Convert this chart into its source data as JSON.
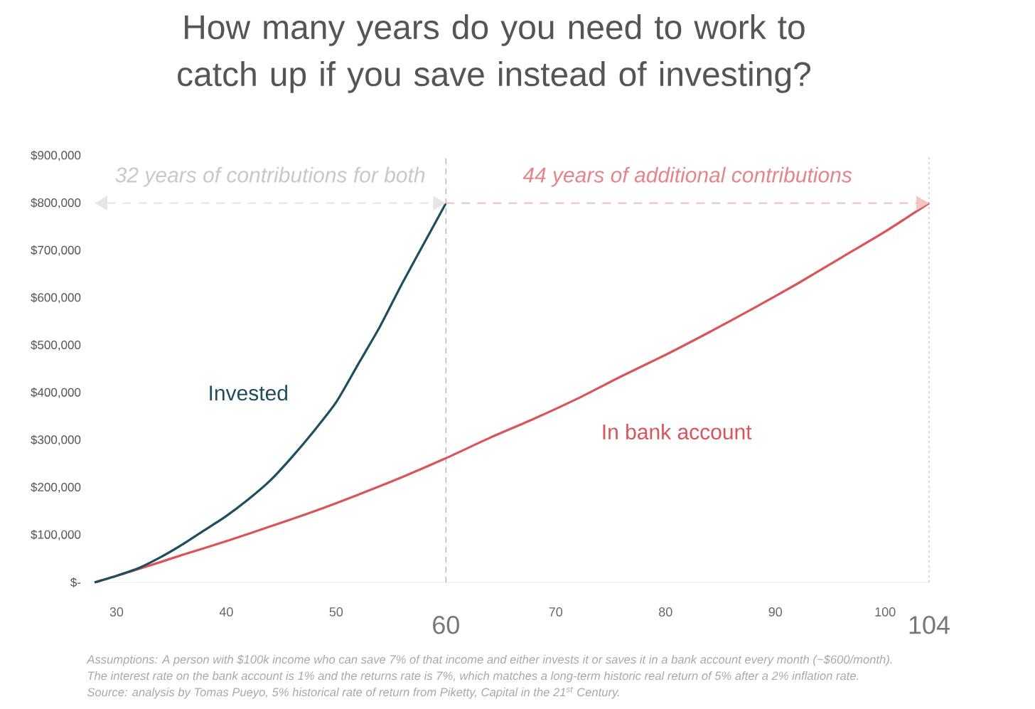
{
  "chart_data": {
    "type": "line",
    "title": "How many years do you need to work to catch up if you save instead of investing?",
    "xlim": [
      28,
      104
    ],
    "ylim": [
      0,
      900000
    ],
    "xticks": [
      30,
      40,
      50,
      70,
      80,
      90,
      100
    ],
    "yticks": [
      {
        "value": 0,
        "label": "$-"
      },
      {
        "value": 100000,
        "label": "$100,000"
      },
      {
        "value": 200000,
        "label": "$200,000"
      },
      {
        "value": 300000,
        "label": "$300,000"
      },
      {
        "value": 400000,
        "label": "$400,000"
      },
      {
        "value": 500000,
        "label": "$500,000"
      },
      {
        "value": 600000,
        "label": "$600,000"
      },
      {
        "value": 700000,
        "label": "$700,000"
      },
      {
        "value": 800000,
        "label": "$800,000"
      },
      {
        "value": 900000,
        "label": "$900,000"
      }
    ],
    "series": [
      {
        "name": "Invested",
        "color": "#1f4e5f",
        "x": [
          28,
          30,
          32,
          34,
          36,
          38,
          40,
          42,
          44,
          46,
          48,
          50,
          52,
          54,
          56,
          58,
          60
        ],
        "values": [
          0,
          14000,
          30000,
          53000,
          80000,
          110000,
          140000,
          175000,
          215000,
          265000,
          320000,
          380000,
          460000,
          540000,
          630000,
          715000,
          800000
        ]
      },
      {
        "name": "In bank account",
        "color": "#d9555a",
        "x": [
          28,
          32,
          36,
          40,
          44,
          48,
          52,
          56,
          60,
          64,
          68,
          72,
          76,
          80,
          84,
          88,
          92,
          96,
          100,
          104
        ],
        "values": [
          0,
          28000,
          58000,
          87000,
          118000,
          150000,
          185000,
          222000,
          262000,
          305000,
          345000,
          388000,
          435000,
          480000,
          528000,
          578000,
          630000,
          685000,
          740000,
          800000
        ]
      }
    ],
    "ref_lines": [
      {
        "axis": "x",
        "value": 60,
        "label": "60",
        "color": "#aaaaaa",
        "line_style": "dashed"
      },
      {
        "axis": "x",
        "value": 104,
        "label": "104",
        "color": "#c0c0c0",
        "line_style": "dotted"
      }
    ],
    "annotations": [
      "32 years of contributions for both",
      "44 years of additional contributions",
      "Assumptions: A person with $100k income who can save 7% of that income and either invests it or saves it in a bank account every month (~$600/month).",
      "The interest rate on the bank account is 1% and the returns rate is 7%, which matches a long-term historic real return of 5% after a 2% inflation rate.",
      "Source: analysis by Tomas Pueyo, 5% historical rate of return from Piketty, Capital in the 21$^{st}$ Century."
    ]
  }
}
